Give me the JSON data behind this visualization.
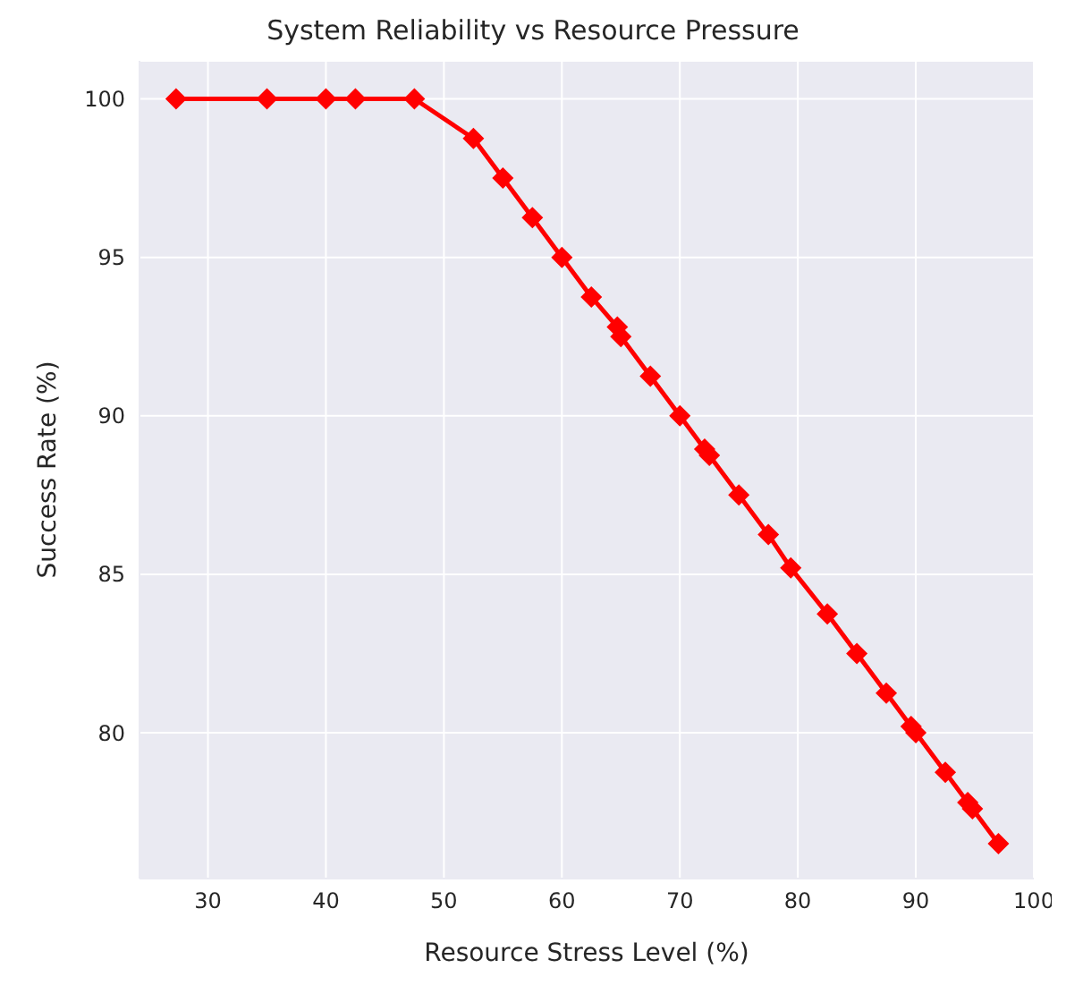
{
  "chart_data": {
    "type": "line",
    "title": "System Reliability vs Resource Pressure",
    "xlabel": "Resource Stress Level (%)",
    "ylabel": "Success Rate (%)",
    "x": [
      27.3,
      35,
      40,
      42.5,
      47.5,
      52.5,
      55,
      57.5,
      60,
      62.5,
      64.7,
      65,
      67.5,
      70,
      72.1,
      72.5,
      75,
      77.5,
      79.4,
      82.5,
      85,
      87.5,
      89.6,
      90,
      92.5,
      94.4,
      94.8,
      97
    ],
    "series": [
      {
        "color": "#ff0000",
        "values": [
          100,
          100,
          100,
          100,
          100,
          98.75,
          97.5,
          96.25,
          95,
          93.75,
          92.8,
          92.5,
          91.25,
          90,
          88.95,
          88.75,
          87.5,
          86.25,
          85.2,
          83.75,
          82.5,
          81.25,
          80.2,
          80,
          78.75,
          77.8,
          77.6,
          76.5
        ]
      }
    ],
    "xlim": [
      24.2,
      100
    ],
    "ylim": [
      75.4,
      101.2
    ],
    "xticks": [
      30,
      40,
      50,
      60,
      70,
      80,
      90,
      100
    ],
    "yticks": [
      80,
      85,
      90,
      95,
      100
    ],
    "grid": true,
    "legend": false,
    "marker": "diamond",
    "line_style": "solid"
  }
}
